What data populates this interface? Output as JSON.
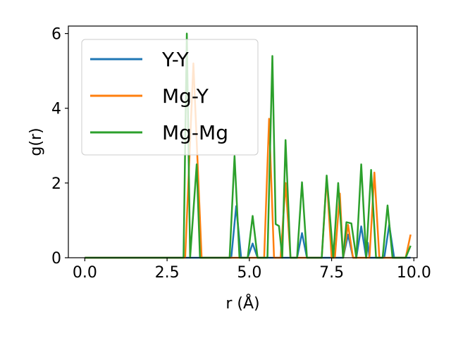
{
  "chart_data": {
    "type": "line",
    "xlabel": "r (Å)",
    "ylabel": "g(r)",
    "xlim": [
      -0.5,
      10.1
    ],
    "ylim": [
      0,
      6.2
    ],
    "x_ticks": [
      0.0,
      2.5,
      5.0,
      7.5,
      10.0
    ],
    "x_tick_labels": [
      "0.0",
      "2.5",
      "5.0",
      "7.5",
      "10.0"
    ],
    "y_ticks": [
      0,
      2,
      4,
      6
    ],
    "y_tick_labels": [
      "0",
      "2",
      "4",
      "6"
    ],
    "grid": false,
    "legend_position": "top-left",
    "series": [
      {
        "name": "Y-Y",
        "color": "#1f77b4",
        "x": [
          0,
          4.45,
          4.6,
          4.75,
          4.95,
          5.1,
          5.25,
          6.45,
          6.6,
          6.75,
          7.85,
          8.0,
          8.15,
          8.25,
          8.4,
          8.55,
          8.6,
          8.65,
          8.8,
          9.1,
          9.25,
          9.4,
          9.9
        ],
        "values": [
          0,
          0,
          1.38,
          0,
          0,
          0.38,
          0,
          0,
          0.66,
          0,
          0,
          0.62,
          0,
          0,
          0.84,
          0,
          0.4,
          0,
          0,
          0,
          0.88,
          0,
          0
        ]
      },
      {
        "name": "Mg-Y",
        "color": "#ff7f0e",
        "x": [
          0,
          3.05,
          3.3,
          3.55,
          5.45,
          5.6,
          5.75,
          5.95,
          6.1,
          6.25,
          7.2,
          7.35,
          7.5,
          7.6,
          7.75,
          7.85,
          8.0,
          8.15,
          8.65,
          8.8,
          8.95,
          9.75,
          9.9
        ],
        "values": [
          0,
          0,
          5.2,
          0,
          0,
          3.72,
          0,
          0,
          2.0,
          0,
          0,
          2.15,
          0,
          0,
          1.72,
          0,
          0.88,
          0,
          0,
          2.28,
          0,
          0,
          0.62
        ]
      },
      {
        "name": "Mg-Mg",
        "color": "#2ca02c",
        "x": [
          0,
          3.0,
          3.1,
          3.2,
          3.4,
          3.5,
          4.4,
          4.55,
          4.7,
          4.95,
          5.1,
          5.25,
          5.55,
          5.7,
          5.8,
          5.9,
          6.0,
          6.1,
          6.25,
          6.45,
          6.6,
          6.75,
          7.2,
          7.35,
          7.55,
          7.7,
          7.85,
          7.95,
          8.1,
          8.25,
          8.4,
          8.55,
          8.7,
          8.85,
          9.05,
          9.2,
          9.35,
          9.75,
          9.9
        ],
        "values": [
          0,
          0,
          6.0,
          0,
          2.5,
          0,
          0,
          2.72,
          0,
          0,
          1.12,
          0,
          0,
          5.4,
          0.9,
          0.85,
          0,
          3.15,
          0,
          0,
          2.02,
          0,
          0,
          2.2,
          0,
          2.0,
          0,
          0.95,
          0.92,
          0,
          2.5,
          0,
          2.35,
          0,
          0,
          1.4,
          0,
          0,
          0.32
        ]
      }
    ]
  }
}
